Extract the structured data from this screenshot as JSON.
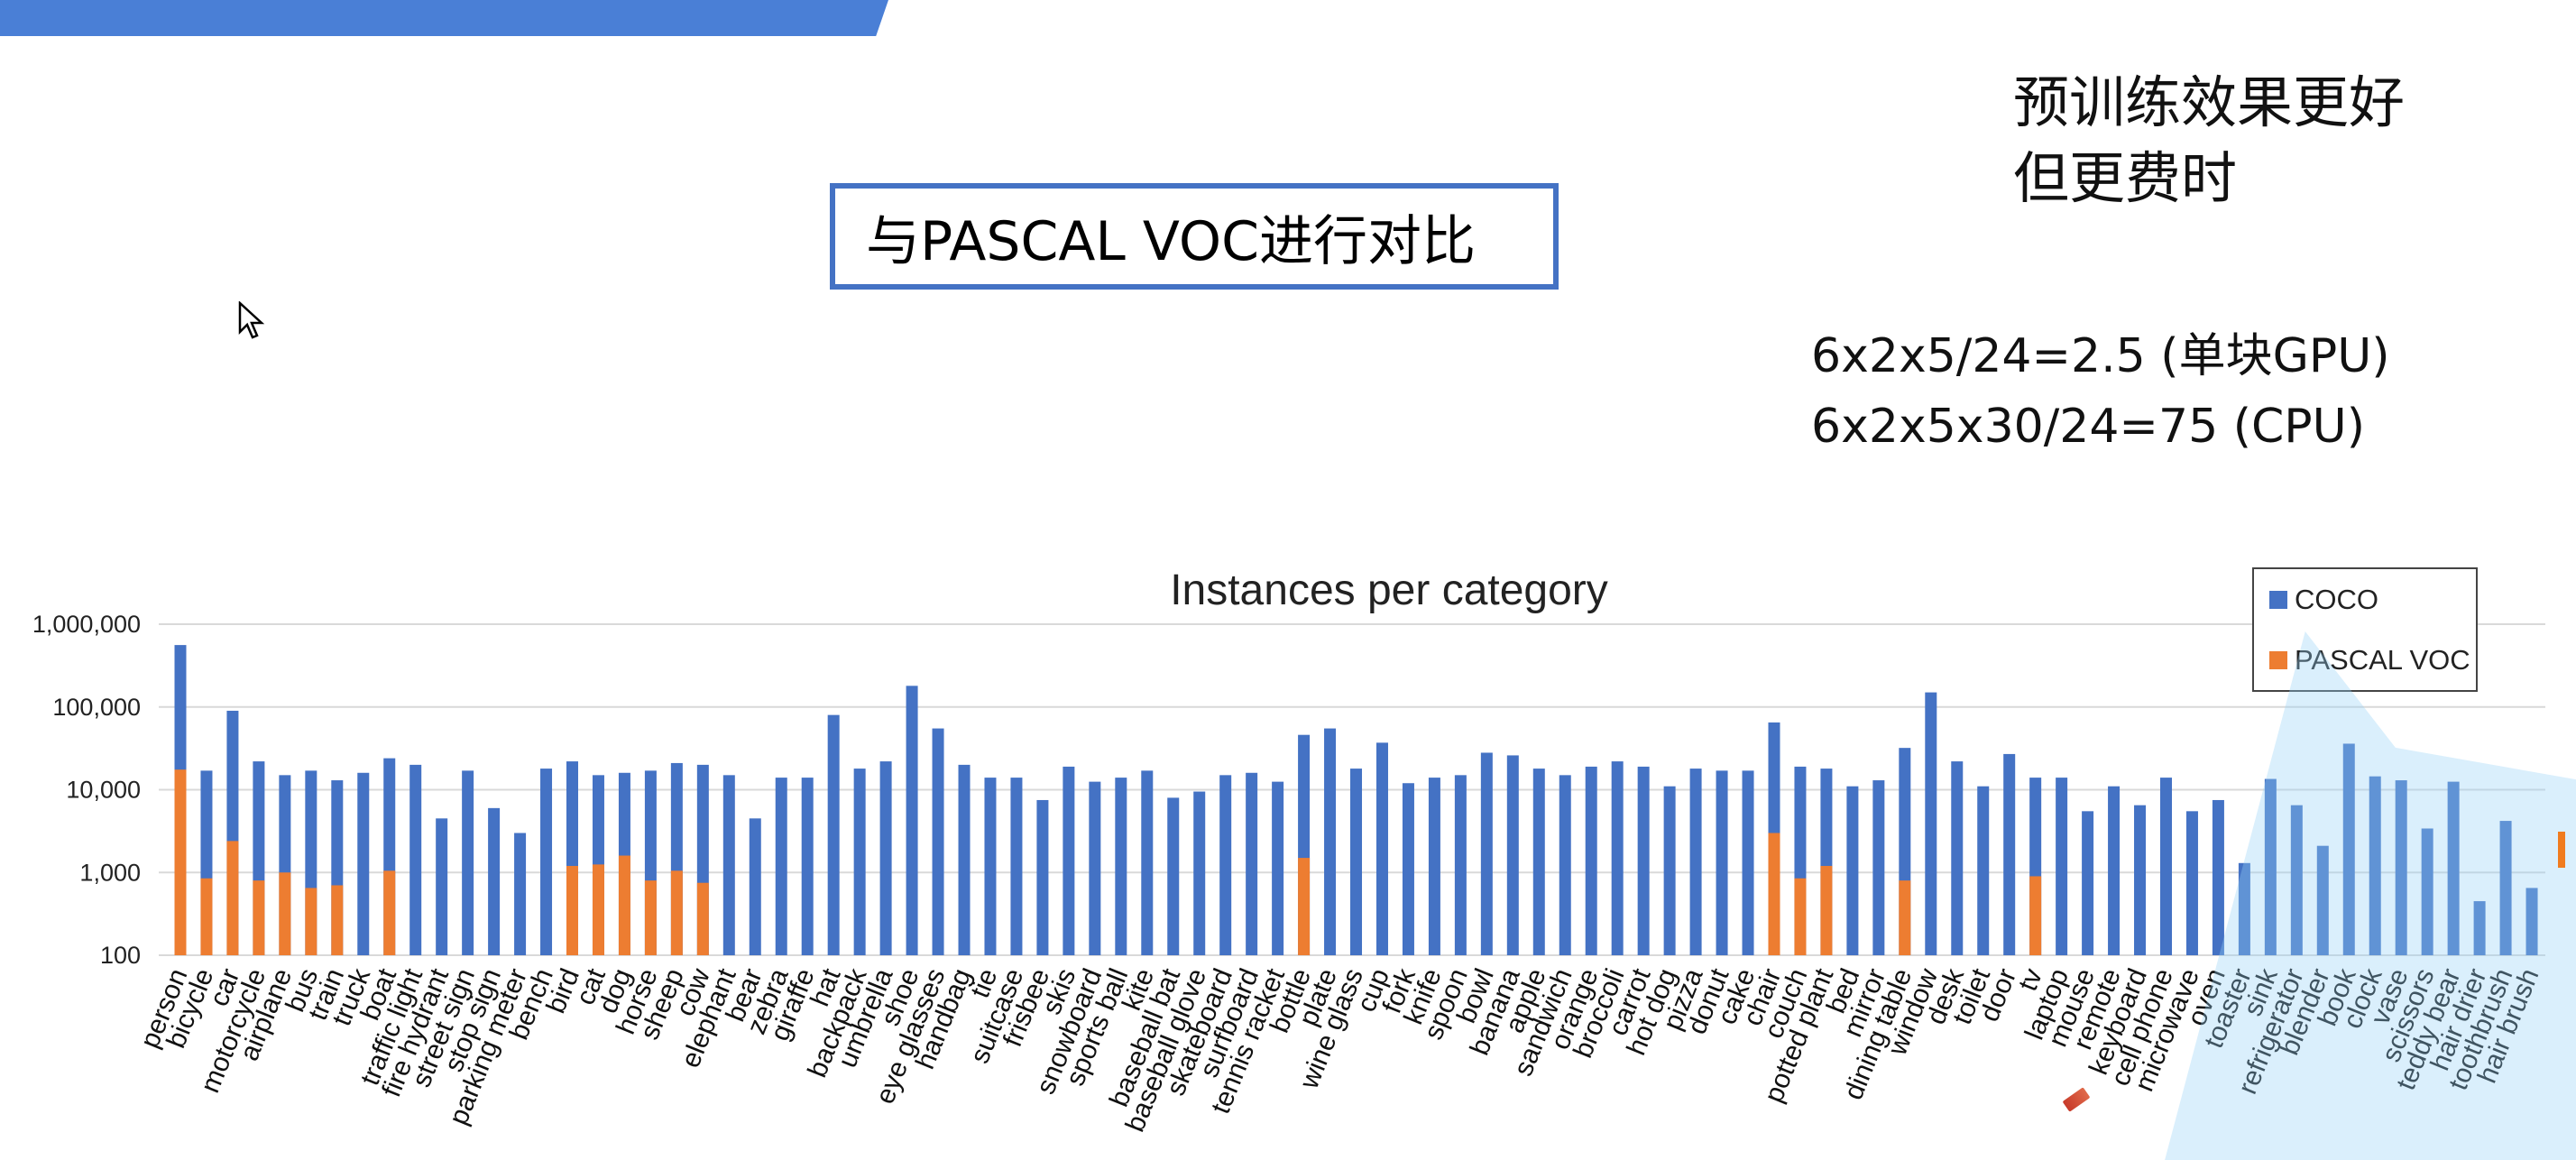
{
  "slide": {
    "title": "与PASCAL VOC进行对比",
    "note_lines": [
      "预训练效果更好",
      "但更费时"
    ],
    "calc_lines": [
      "6x2x5/24=2.5 (单块GPU)",
      "6x2x5x30/24=75 (CPU)"
    ]
  },
  "icons": {
    "cursor": "mouse-pointer-icon",
    "pen": "pen-icon"
  },
  "colors": {
    "coco": "#4472c4",
    "voc": "#ed7d31",
    "banner": "#4a7fd6"
  },
  "chart_data": {
    "type": "bar",
    "title": "Instances per category",
    "y_scale": "log",
    "ylim": [
      100,
      1000000
    ],
    "yticks": [
      {
        "value": 100,
        "label": "100"
      },
      {
        "value": 1000,
        "label": "1,000"
      },
      {
        "value": 10000,
        "label": "10,000"
      },
      {
        "value": 100000,
        "label": "100,000"
      },
      {
        "value": 1000000,
        "label": "1,000,000"
      }
    ],
    "grid": true,
    "legend_position": "top-right",
    "categories": [
      "person",
      "bicycle",
      "car",
      "motorcycle",
      "airplane",
      "bus",
      "train",
      "truck",
      "boat",
      "traffic light",
      "fire hydrant",
      "street sign",
      "stop sign",
      "parking meter",
      "bench",
      "bird",
      "cat",
      "dog",
      "horse",
      "sheep",
      "cow",
      "elephant",
      "bear",
      "zebra",
      "giraffe",
      "hat",
      "backpack",
      "umbrella",
      "shoe",
      "eye glasses",
      "handbag",
      "tie",
      "suitcase",
      "frisbee",
      "skis",
      "snowboard",
      "sports ball",
      "kite",
      "baseball bat",
      "baseball glove",
      "skateboard",
      "surfboard",
      "tennis racket",
      "bottle",
      "plate",
      "wine glass",
      "cup",
      "fork",
      "knife",
      "spoon",
      "bowl",
      "banana",
      "apple",
      "sandwich",
      "orange",
      "broccoli",
      "carrot",
      "hot dog",
      "pizza",
      "donut",
      "cake",
      "chair",
      "couch",
      "potted plant",
      "bed",
      "mirror",
      "dining table",
      "window",
      "desk",
      "toilet",
      "door",
      "tv",
      "laptop",
      "mouse",
      "remote",
      "keyboard",
      "cell phone",
      "microwave",
      "oven",
      "toaster",
      "sink",
      "refrigerator",
      "blender",
      "book",
      "clock",
      "vase",
      "scissors",
      "teddy bear",
      "hair drier",
      "toothbrush",
      "hair brush"
    ],
    "series": [
      {
        "name": "COCO",
        "values": [
          560000,
          17000,
          90000,
          22000,
          15000,
          17000,
          13000,
          16000,
          24000,
          20000,
          4500,
          17000,
          6000,
          3000,
          18000,
          22000,
          15000,
          16000,
          17000,
          21000,
          20000,
          15000,
          4500,
          14000,
          14000,
          80000,
          18000,
          22000,
          180000,
          55000,
          20000,
          14000,
          14000,
          7500,
          19000,
          12500,
          14000,
          17000,
          8000,
          9500,
          15000,
          16000,
          12500,
          46000,
          55000,
          18000,
          37000,
          12000,
          14000,
          15000,
          28000,
          26000,
          18000,
          15000,
          19000,
          22000,
          19000,
          11000,
          18000,
          17000,
          17000,
          65000,
          19000,
          18000,
          11000,
          13000,
          32000,
          150000,
          22000,
          11000,
          27000,
          14000,
          14000,
          5500,
          11000,
          6500,
          14000,
          5500,
          7500,
          1300,
          13500,
          6500,
          2100,
          36000,
          14500,
          13000,
          3400,
          12500,
          450,
          4200,
          650
        ]
      },
      {
        "name": "PASCAL VOC",
        "values": [
          17500,
          850,
          2400,
          800,
          1000,
          650,
          700,
          null,
          1050,
          null,
          null,
          null,
          null,
          null,
          null,
          1200,
          1250,
          1600,
          800,
          1050,
          750,
          null,
          null,
          null,
          null,
          null,
          null,
          null,
          null,
          null,
          null,
          null,
          null,
          null,
          null,
          null,
          null,
          null,
          null,
          null,
          null,
          null,
          null,
          1500,
          null,
          null,
          null,
          null,
          null,
          null,
          null,
          null,
          null,
          null,
          null,
          null,
          null,
          null,
          null,
          null,
          null,
          3000,
          850,
          1200,
          null,
          null,
          800,
          null,
          null,
          null,
          null,
          900,
          null,
          null,
          null,
          null,
          null,
          null,
          null,
          null,
          null,
          null,
          null,
          null,
          null,
          null,
          null,
          null,
          null,
          null,
          null
        ]
      }
    ]
  }
}
